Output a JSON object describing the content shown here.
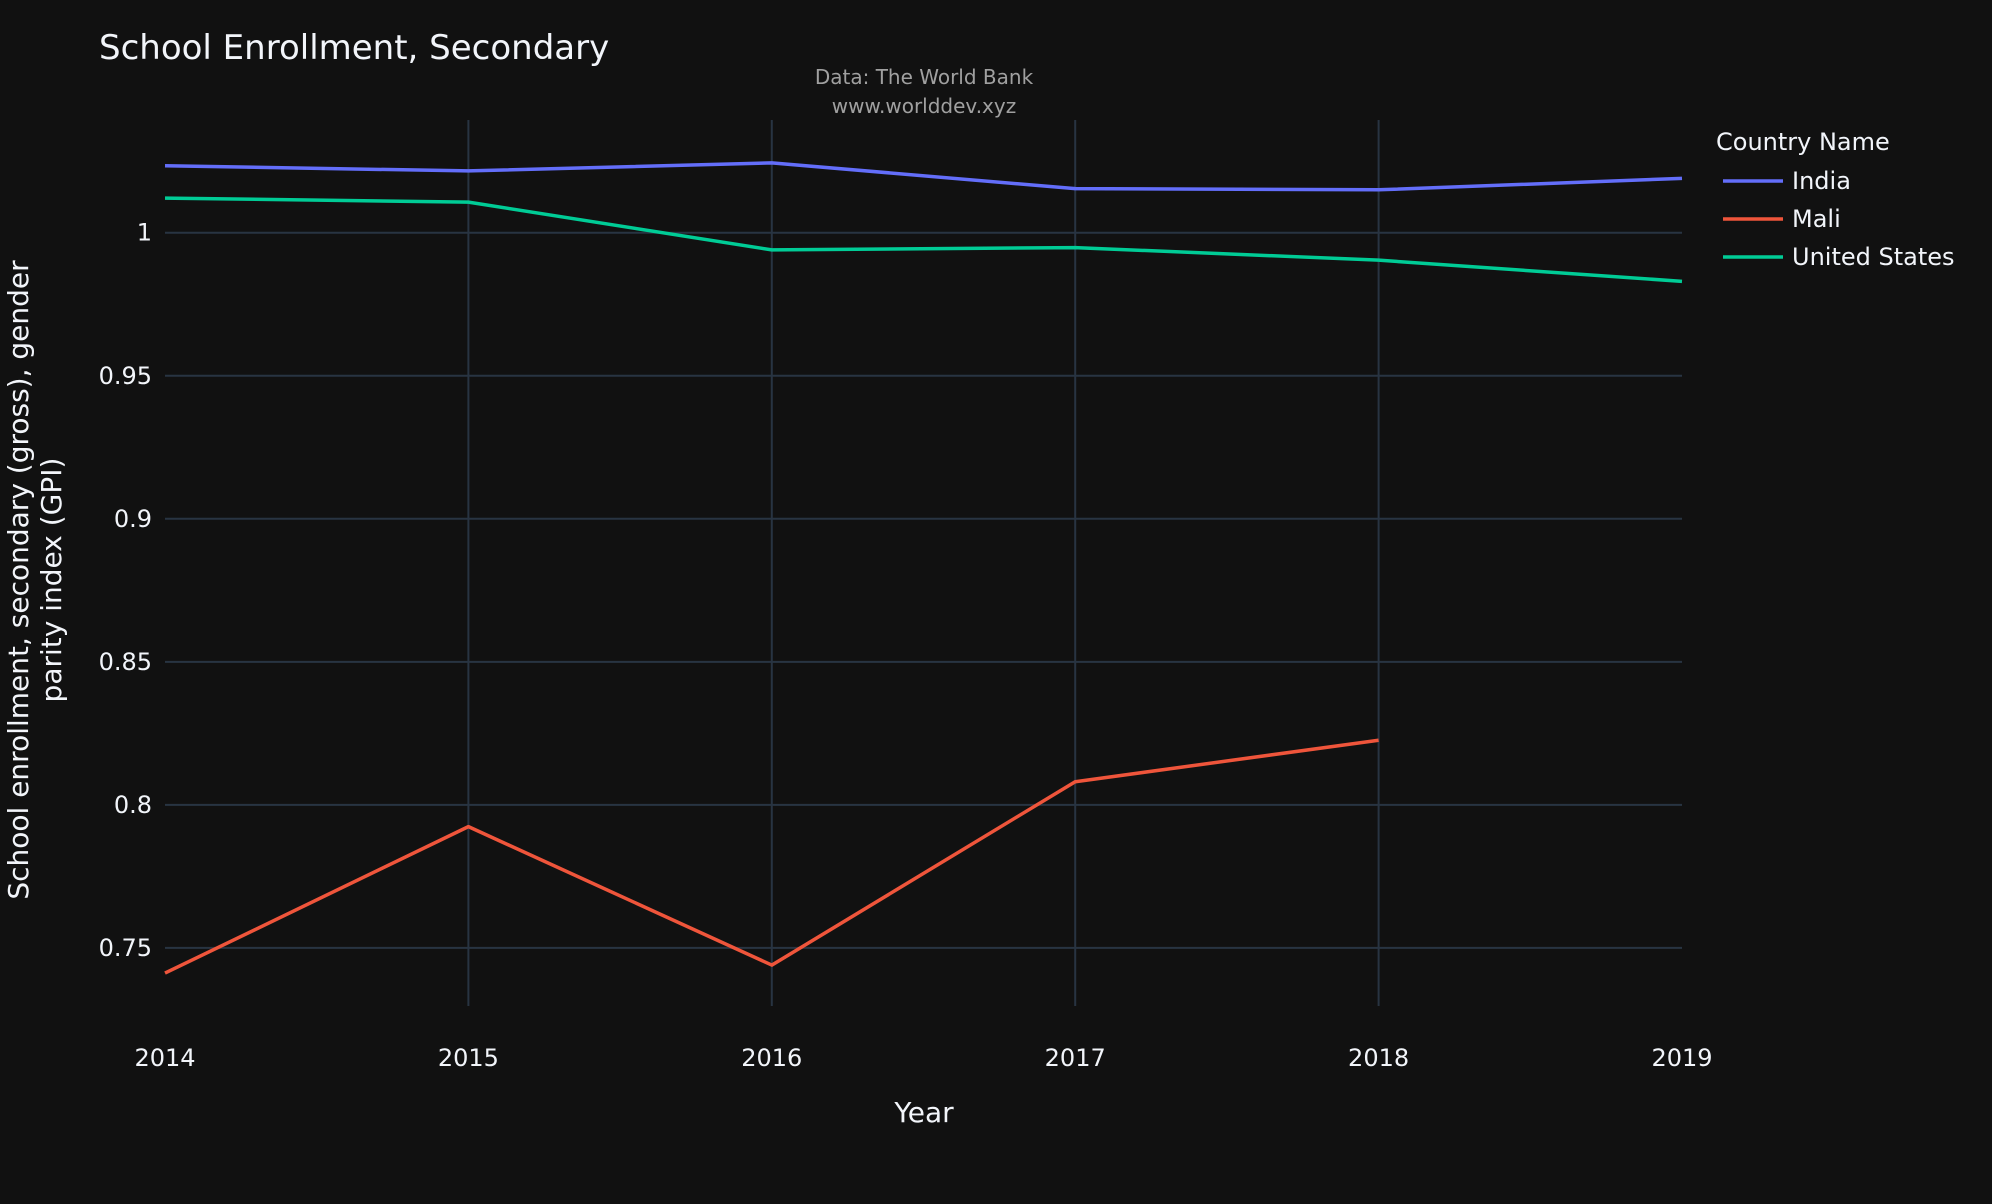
{
  "chart_data": {
    "type": "line",
    "title": "School Enrollment, Secondary",
    "subtitle": [
      "Data: The World Bank",
      "www.worlddev.xyz"
    ],
    "xlabel": "Year",
    "ylabel": [
      "School enrollment, secondary (gross), gender",
      "parity index (GPI)"
    ],
    "x": [
      2014,
      2015,
      2016,
      2017,
      2018,
      2019
    ],
    "x_ticks": [
      "2014",
      "2015",
      "2016",
      "2017",
      "2018",
      "2019"
    ],
    "xlim": [
      2014,
      2019
    ],
    "y_ticks": [
      {
        "value": 0.75,
        "label": "0.75"
      },
      {
        "value": 0.8,
        "label": "0.8"
      },
      {
        "value": 0.85,
        "label": "0.85"
      },
      {
        "value": 0.9,
        "label": "0.9"
      },
      {
        "value": 0.95,
        "label": "0.95"
      },
      {
        "value": 1.0,
        "label": "1"
      }
    ],
    "ylim": [
      0.7297,
      1.0394
    ],
    "grid": true,
    "legend_title": "Country Name",
    "legend_position": "top-right",
    "series": [
      {
        "name": "India",
        "color": "#636efa",
        "values": [
          1.0234,
          1.0216,
          1.0244,
          1.0154,
          1.015,
          1.019
        ]
      },
      {
        "name": "Mali",
        "color": "#ef553b",
        "values": [
          0.7412,
          0.7924,
          0.744,
          0.8081,
          0.8226,
          null
        ]
      },
      {
        "name": "United States",
        "color": "#00cc96",
        "values": [
          1.0121,
          1.0107,
          0.994,
          0.9948,
          0.9904,
          0.983
        ]
      }
    ]
  }
}
